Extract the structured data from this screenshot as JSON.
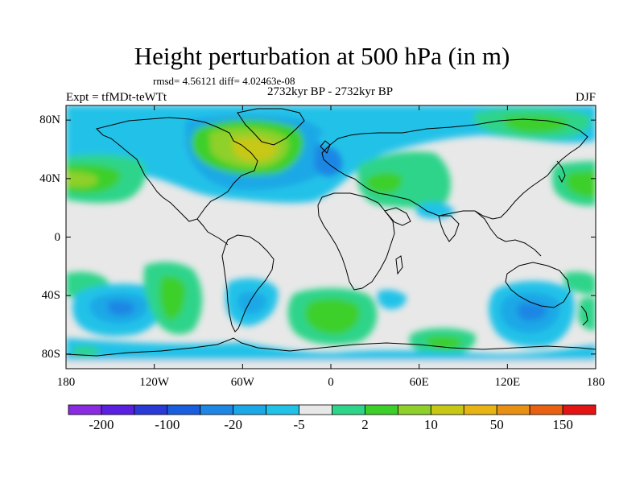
{
  "title": "Height perturbation at 500 hPa (in m)",
  "stats": "rmsd= 4.56121 diff= 4.02463e-08",
  "experiment": "Expt = tfMDt-teWTt",
  "period": "2732kyr BP - 2732kyr BP",
  "season": "DJF",
  "map": {
    "projection": "cylindrical equidistant",
    "lon_range": [
      -180,
      180
    ],
    "lat_range": [
      -90,
      90
    ],
    "background_color": "#e8e8e8",
    "x_ticks": [
      {
        "label": "180",
        "lon": -180
      },
      {
        "label": "120W",
        "lon": -120
      },
      {
        "label": "60W",
        "lon": -60
      },
      {
        "label": "0",
        "lon": 0
      },
      {
        "label": "60E",
        "lon": 60
      },
      {
        "label": "120E",
        "lon": 120
      },
      {
        "label": "180",
        "lon": 180
      }
    ],
    "y_ticks": [
      {
        "label": "80N",
        "lat": 80
      },
      {
        "label": "40N",
        "lat": 40
      },
      {
        "label": "0",
        "lat": 0
      },
      {
        "label": "40S",
        "lat": -40
      },
      {
        "label": "80S",
        "lat": -80
      }
    ]
  },
  "colorbar": {
    "colors": [
      "#8a2be2",
      "#5a1fe0",
      "#2a3ad6",
      "#1a5ee0",
      "#1e86e4",
      "#1aa8e6",
      "#22c2e8",
      "#e8e8e8",
      "#2ed48a",
      "#3ccf2a",
      "#8fd02a",
      "#c8c814",
      "#e8b414",
      "#e89014",
      "#e86010",
      "#e21414"
    ],
    "labels": [
      "-200",
      "-100",
      "-20",
      "-5",
      "2",
      "10",
      "50",
      "150"
    ]
  }
}
